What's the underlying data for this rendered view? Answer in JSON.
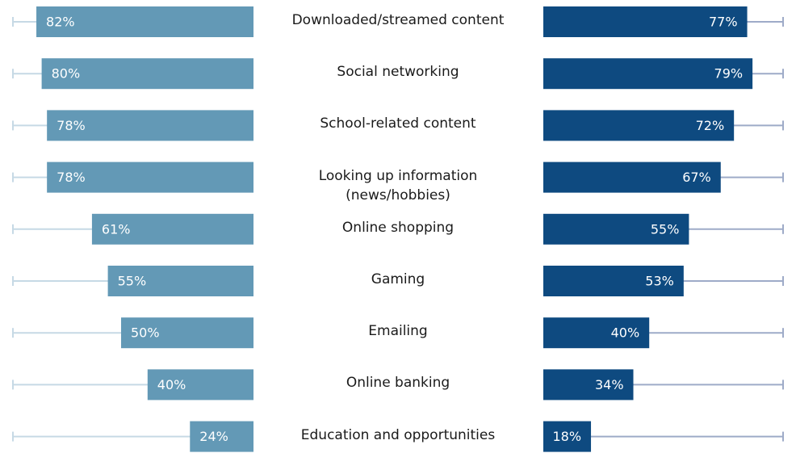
{
  "chart_data": {
    "type": "butterfly-bar",
    "categories": [
      "Downloaded/streamed content",
      "Social networking",
      "School-related content",
      "Looking up information\n(news/hobbies)",
      "Online shopping",
      "Gaming",
      "Emailing",
      "Online banking",
      "Education and opportunities"
    ],
    "series": [
      {
        "color": "#6399b6",
        "values": [
          82,
          80,
          78,
          78,
          61,
          55,
          50,
          40,
          24
        ],
        "value_labels": [
          "82%",
          "80%",
          "78%",
          "78%",
          "61%",
          "55%",
          "50%",
          "40%",
          "24%"
        ]
      },
      {
        "color": "#0e4a80",
        "values": [
          77,
          79,
          72,
          67,
          55,
          53,
          40,
          34,
          18
        ],
        "value_labels": [
          "77%",
          "79%",
          "72%",
          "67%",
          "55%",
          "53%",
          "40%",
          "34%",
          "18%"
        ]
      }
    ]
  }
}
